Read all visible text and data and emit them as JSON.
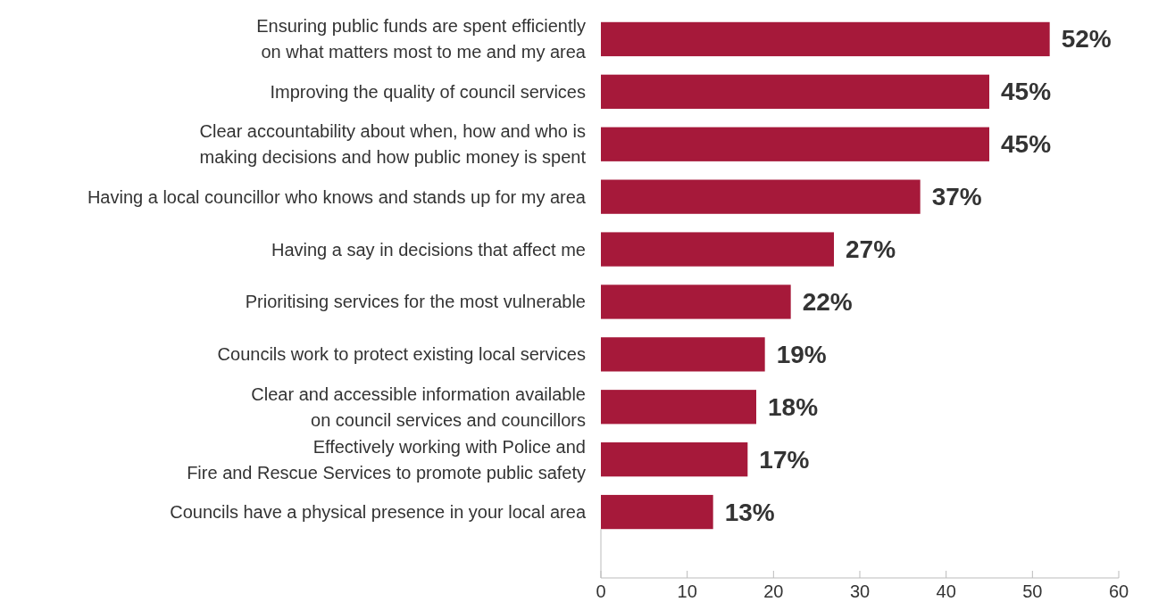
{
  "chart_data": {
    "type": "bar",
    "orientation": "horizontal",
    "categories": [
      "Ensuring public funds are spent efficiently\non what matters most to me and my area",
      "Improving the quality of council services",
      "Clear accountability about when, how and who is\nmaking decisions and how public money is spent",
      "Having a local councillor who knows and stands up for my area",
      "Having a say in decisions that affect me",
      "Prioritising services for the most vulnerable",
      "Councils work to protect existing local services",
      "Clear and accessible information available\non council services and councillors",
      "Effectively working with Police and\nFire and Rescue Services to promote public safety",
      "Councils have a physical presence in your local area"
    ],
    "values": [
      52,
      45,
      45,
      37,
      27,
      22,
      19,
      18,
      17,
      13
    ],
    "value_labels": [
      "52%",
      "45%",
      "45%",
      "37%",
      "27%",
      "22%",
      "19%",
      "18%",
      "17%",
      "13%"
    ],
    "color": "#a6193a",
    "xlim": [
      0,
      60
    ],
    "xticks": [
      0,
      10,
      20,
      30,
      40,
      50,
      60
    ],
    "grid": false
  }
}
